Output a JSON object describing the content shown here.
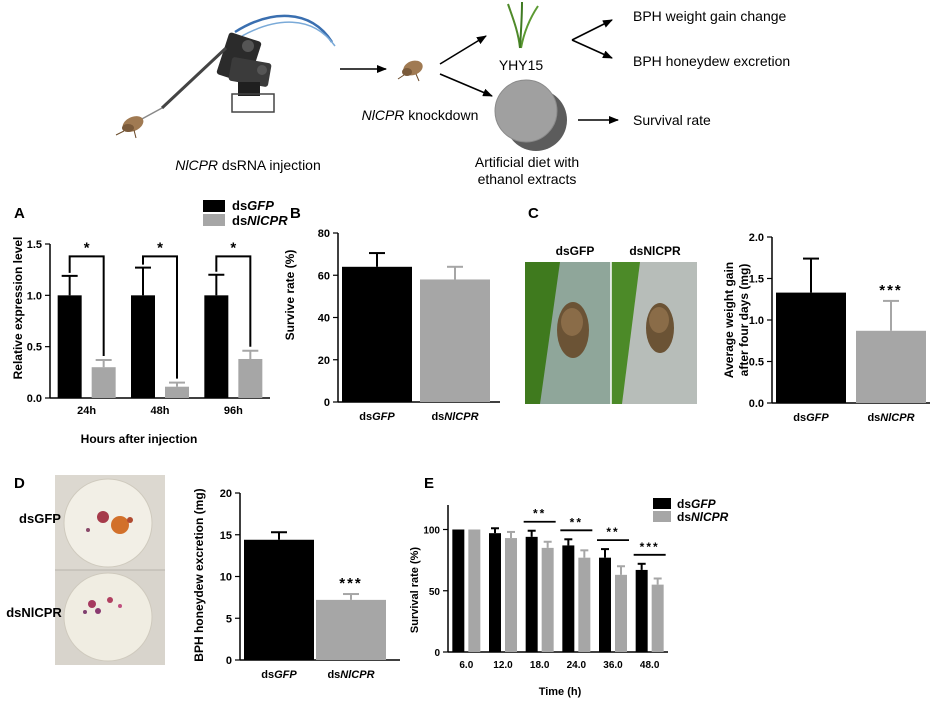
{
  "colors": {
    "black_bar": "#000000",
    "grey_bar": "#a6a6a6",
    "leaf": "#4f8a2a",
    "circle_front": "#a0a0a0",
    "circle_back": "#5c5c5c"
  },
  "schematic": {
    "injection_prefix": "Nl",
    "injection_italic": "CPR",
    "injection_suffix": " dsRNA injection",
    "knock_prefix": "Nl",
    "knock_italic": "CPR",
    "knock_suffix": " knockdown",
    "plant_label": "YHY15",
    "diet_line1": "Artificial diet with",
    "diet_line2": "ethanol extracts",
    "out1": "BPH weight gain change",
    "out2": "BPH honeydew excretion",
    "out3": "Survival rate",
    "icons": [
      "microinjector-icon",
      "planthopper-icon",
      "rice-seedling-icon",
      "diet-disc-icon"
    ]
  },
  "legend": {
    "gfp_prefix": "ds",
    "gfp_italic": "GFP",
    "nlcpr_prefix": "ds",
    "nlcpr_italic": "NlCPR"
  },
  "photos": {
    "C_label_gfp": "dsGFP",
    "C_label_nlcpr": "dsNlCPR",
    "D_label_gfp": "dsGFP",
    "D_label_nlcpr": "dsNlCPR"
  },
  "chart_data": [
    {
      "panel": "A",
      "type": "bar",
      "categories": [
        "24h",
        "48h",
        "96h"
      ],
      "xlabel": "Hours after injection",
      "ylabel": "Relative expression level",
      "ylim": [
        0,
        1.5
      ],
      "yticks": [
        "0.0",
        "0.5",
        "1.0",
        "1.5"
      ],
      "series": [
        {
          "name": "dsGFP",
          "values": [
            1.0,
            1.0,
            1.0
          ],
          "errors": [
            0.19,
            0.27,
            0.2
          ]
        },
        {
          "name": "dsNlCPR",
          "values": [
            0.3,
            0.11,
            0.38
          ],
          "errors": [
            0.07,
            0.04,
            0.08
          ]
        }
      ],
      "significance": [
        "*",
        "*",
        "*"
      ],
      "legend": "top-right"
    },
    {
      "panel": "B",
      "type": "bar",
      "categories": [
        "dsGFP",
        "dsNlCPR"
      ],
      "ylabel": "Survive rate (%)",
      "ylim": [
        0,
        80
      ],
      "yticks": [
        "0",
        "20",
        "40",
        "60",
        "80"
      ],
      "values": [
        64,
        58
      ],
      "errors": [
        6.5,
        6
      ]
    },
    {
      "panel": "C",
      "type": "bar",
      "categories": [
        "dsGFP",
        "dsNlCPR"
      ],
      "ylabel": "Average weight gain after four days (mg)",
      "ylabel_line1": "Average weight gain",
      "ylabel_line2": "after four days (mg)",
      "ylim": [
        0,
        2.0
      ],
      "yticks": [
        "0.0",
        "0.5",
        "1.0",
        "1.5",
        "2.0"
      ],
      "values": [
        1.33,
        0.87
      ],
      "errors": [
        0.41,
        0.36
      ],
      "significance": "***"
    },
    {
      "panel": "D",
      "type": "bar",
      "categories": [
        "dsGFP",
        "dsNlCPR"
      ],
      "ylabel": "BPH honeydew excretion (mg)",
      "ylim": [
        0,
        20
      ],
      "yticks": [
        "0",
        "5",
        "10",
        "15",
        "20"
      ],
      "values": [
        14.4,
        7.2
      ],
      "errors": [
        0.9,
        0.7
      ],
      "significance": "***"
    },
    {
      "panel": "E",
      "type": "bar",
      "categories": [
        "6.0",
        "12.0",
        "18.0",
        "24.0",
        "36.0",
        "48.0"
      ],
      "xlabel": "Time (h)",
      "ylabel": "Survival rate (%)",
      "ylim": [
        0,
        120
      ],
      "yticks": [
        "0",
        "50",
        "100"
      ],
      "series": [
        {
          "name": "dsGFP",
          "values": [
            100,
            97,
            94,
            87,
            77,
            67
          ],
          "errors": [
            0,
            4,
            5,
            5,
            7,
            5
          ]
        },
        {
          "name": "dsNlCPR",
          "values": [
            100,
            93,
            85,
            77,
            63,
            55
          ],
          "errors": [
            0,
            5,
            5,
            6,
            7,
            5
          ]
        }
      ],
      "significance": [
        "",
        "",
        "**",
        "**",
        "**",
        "***"
      ],
      "legend": "top-right"
    }
  ]
}
